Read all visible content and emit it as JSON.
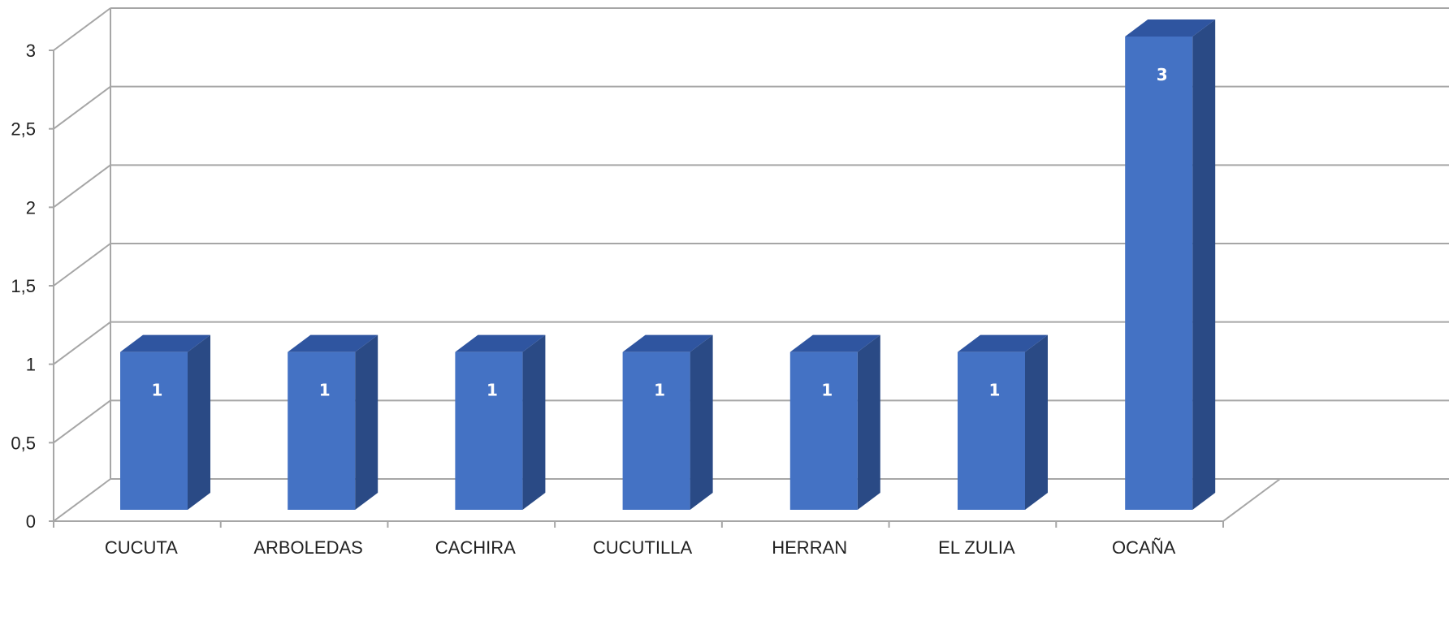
{
  "chart_data": {
    "type": "bar",
    "categories": [
      "CUCUTA",
      "ARBOLEDAS",
      "CACHIRA",
      "CUCUTILLA",
      "HERRAN",
      "EL ZULIA",
      "OCAÑA"
    ],
    "values": [
      1,
      1,
      1,
      1,
      1,
      1,
      3
    ],
    "data_labels": [
      "1",
      "1",
      "1",
      "1",
      "1",
      "1",
      "3"
    ],
    "y_ticks": [
      "0",
      "0,5",
      "1",
      "1,5",
      "2",
      "2,5",
      "3"
    ],
    "ylim": [
      0,
      3
    ],
    "grid": true,
    "style": "3d-column",
    "colors": {
      "bar_front": "#4472c4",
      "bar_top": "#2f55a0",
      "bar_side": "#2a4a85",
      "grid": "#a6a6a6",
      "axis": "#a6a6a6"
    }
  }
}
